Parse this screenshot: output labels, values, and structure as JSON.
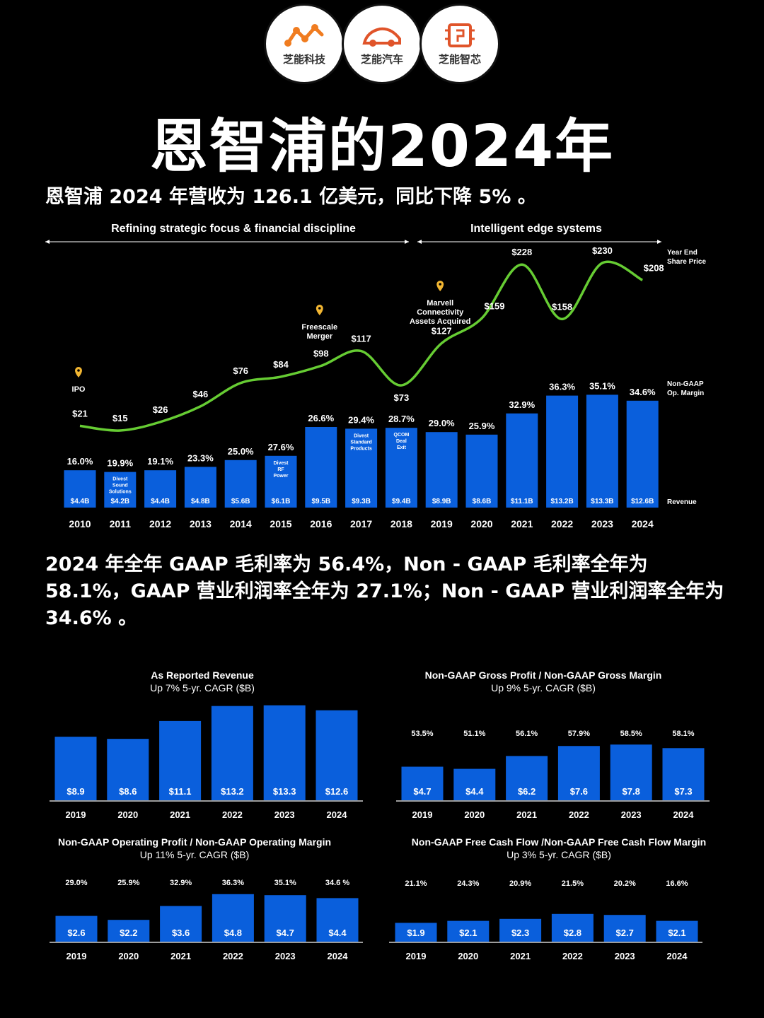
{
  "logos": [
    {
      "label": "芝能科技",
      "icon": "network-icon"
    },
    {
      "label": "芝能汽车",
      "icon": "car-icon"
    },
    {
      "label": "芝能智芯",
      "icon": "chip-icon"
    }
  ],
  "title": "恩智浦的2024年",
  "subtitle": "恩智浦 2024 年营收为 126.1 亿美元，同比下降 5% 。",
  "paragraph": "2024 年全年 GAAP 毛利率为 56.4%，Non - GAAP 毛利率全年为 58.1%，GAAP 营业利润率全年为 27.1%；Non - GAAP 营业利润率全年为 34.6% 。",
  "colors": {
    "bar": "#0a5fdc",
    "line": "#66cc33",
    "pin": "#f2b632",
    "bg": "#000000"
  },
  "chart_data": [
    {
      "type": "bar",
      "id": "main",
      "eras": [
        "Refining strategic focus & financial discipline",
        "Intelligent edge systems"
      ],
      "years": [
        "2010",
        "2011",
        "2012",
        "2013",
        "2014",
        "2015",
        "2016",
        "2017",
        "2018",
        "2019",
        "2020",
        "2021",
        "2022",
        "2023",
        "2024"
      ],
      "revenue": [
        4.4,
        4.2,
        4.4,
        4.8,
        5.6,
        6.1,
        9.5,
        9.3,
        9.4,
        8.9,
        8.6,
        11.1,
        13.2,
        13.3,
        12.6
      ],
      "revenue_labels": [
        "$4.4B",
        "$4.2B",
        "$4.4B",
        "$4.8B",
        "$5.6B",
        "$6.1B",
        "$9.5B",
        "$9.3B",
        "$9.4B",
        "$8.9B",
        "$8.6B",
        "$11.1B",
        "$13.2B",
        "$13.3B",
        "$12.6B"
      ],
      "margin_labels": [
        "16.0%",
        "19.9%",
        "19.1%",
        "23.3%",
        "25.0%",
        "27.6%",
        "26.6%",
        "29.4%",
        "28.7%",
        "29.0%",
        "25.9%",
        "32.9%",
        "36.3%",
        "35.1%",
        "34.6%"
      ],
      "share_price": [
        21,
        15,
        26,
        46,
        76,
        84,
        98,
        117,
        73,
        127,
        159,
        228,
        158,
        230,
        208
      ],
      "share_price_labels": [
        "$21",
        "$15",
        "$26",
        "$46",
        "$76",
        "$84",
        "$98",
        "$117",
        "$73",
        "$127",
        "$159",
        "$228",
        "$158",
        "$230",
        "$208"
      ],
      "bar_notes": [
        {
          "year_index": 1,
          "lines": [
            "Divest",
            "Sound",
            "Solutions"
          ]
        },
        {
          "year_index": 5,
          "lines": [
            "Divest",
            "RF",
            "Power"
          ]
        },
        {
          "year_index": 7,
          "lines": [
            "Divest",
            "Standard",
            "Products"
          ]
        },
        {
          "year_index": 8,
          "lines": [
            "QCOM",
            "Deal",
            "Exit"
          ]
        }
      ],
      "events": [
        {
          "year_index": 0,
          "lines": [
            "IPO"
          ]
        },
        {
          "year_index": 6,
          "lines": [
            "Freescale",
            "Merger"
          ]
        },
        {
          "year_index": 9,
          "lines": [
            "Marvell",
            "Connectivity",
            "Assets Acquired"
          ]
        }
      ],
      "legend": {
        "price": [
          "Year End",
          "Share Price"
        ],
        "margin": [
          "Non-GAAP",
          "Op. Margin"
        ],
        "revenue": "Revenue"
      }
    },
    {
      "type": "bar",
      "id": "as-reported-revenue",
      "title": "As Reported Revenue",
      "subtitle": "Up 7% 5-yr. CAGR ($B)",
      "categories": [
        "2019",
        "2020",
        "2021",
        "2022",
        "2023",
        "2024"
      ],
      "values": [
        8.9,
        8.6,
        11.1,
        13.2,
        13.3,
        12.6
      ],
      "value_labels": [
        "$8.9",
        "$8.6",
        "$11.1",
        "$13.2",
        "$13.3",
        "$12.6"
      ],
      "margins": null,
      "ymax": 13.8
    },
    {
      "type": "bar",
      "id": "gross-profit",
      "title": "Non-GAAP Gross Profit / Non-GAAP Gross Margin",
      "subtitle": "Up 9% 5-yr. CAGR ($B)",
      "categories": [
        "2019",
        "2020",
        "2021",
        "2022",
        "2023",
        "2024"
      ],
      "values": [
        4.7,
        4.4,
        6.2,
        7.6,
        7.8,
        7.3
      ],
      "value_labels": [
        "$4.7",
        "$4.4",
        "$6.2",
        "$7.6",
        "$7.8",
        "$7.3"
      ],
      "margins": [
        "53.5%",
        "51.1%",
        "56.1%",
        "57.9%",
        "58.5%",
        "58.1%"
      ],
      "ymax": 13.8
    },
    {
      "type": "bar",
      "id": "operating-profit",
      "title": "Non-GAAP Operating Profit / Non-GAAP Operating Margin",
      "subtitle": "Up 11% 5-yr. CAGR ($B)",
      "categories": [
        "2019",
        "2020",
        "2021",
        "2022",
        "2023",
        "2024"
      ],
      "values": [
        2.6,
        2.2,
        3.6,
        4.8,
        4.7,
        4.4
      ],
      "value_labels": [
        "$2.6",
        "$2.2",
        "$3.6",
        "$4.8",
        "$4.7",
        "$4.4"
      ],
      "margins": [
        "29.0%",
        "25.9%",
        "32.9%",
        "36.3%",
        "35.1%",
        "34.6 %"
      ],
      "ymax": 7.0
    },
    {
      "type": "bar",
      "id": "free-cash-flow",
      "title": "Non-GAAP Free Cash Flow /Non-GAAP Free Cash Flow Margin",
      "subtitle": "Up 3% 5-yr. CAGR ($B)",
      "categories": [
        "2019",
        "2020",
        "2021",
        "2022",
        "2023",
        "2024"
      ],
      "values": [
        1.9,
        2.1,
        2.3,
        2.8,
        2.7,
        2.1
      ],
      "value_labels": [
        "$1.9",
        "$2.1",
        "$2.3",
        "$2.8",
        "$2.7",
        "$2.1"
      ],
      "margins": [
        "21.1%",
        "24.3%",
        "20.9%",
        "21.5%",
        "20.2%",
        "16.6%"
      ],
      "ymax": 7.0
    }
  ]
}
